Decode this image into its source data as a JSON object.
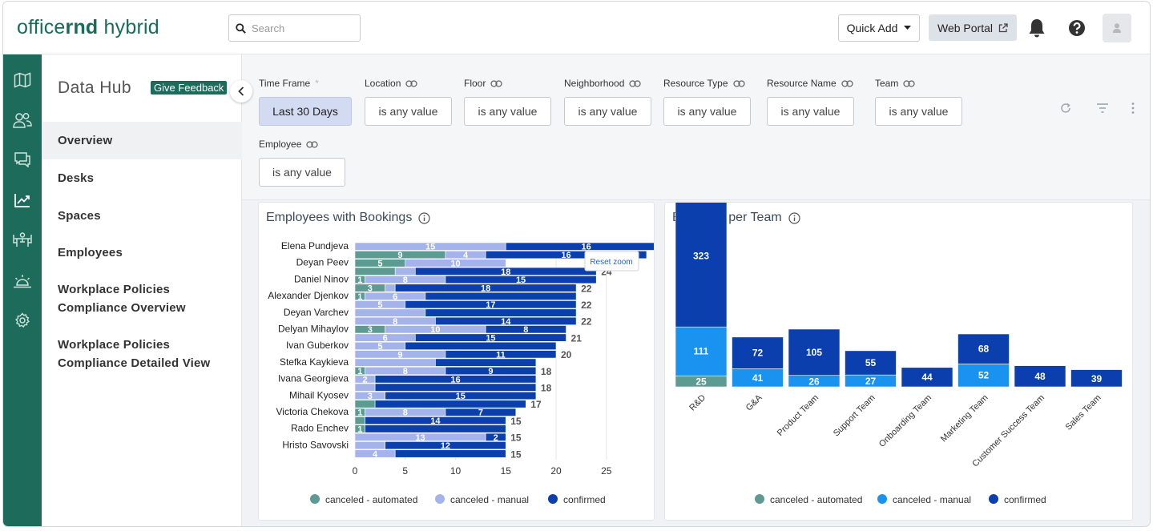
{
  "header": {
    "logo_light": "office",
    "logo_bold": "rnd",
    "logo_rest": " hybrid",
    "search_placeholder": "Search",
    "quick_add_label": "Quick Add",
    "web_portal_label": "Web Portal"
  },
  "sidebar": {
    "title": "Data Hub",
    "feedback_label": "Give Feedback",
    "items": [
      {
        "label": "Overview"
      },
      {
        "label": "Desks"
      },
      {
        "label": "Spaces"
      },
      {
        "label": "Employees"
      },
      {
        "label": "Workplace Policies Compliance Overview"
      },
      {
        "label": "Workplace Policies Compliance Detailed View"
      }
    ]
  },
  "filters": [
    {
      "label": "Time Frame",
      "required": "*",
      "value": "Last 30 Days"
    },
    {
      "label": "Location",
      "value": "is any value"
    },
    {
      "label": "Floor",
      "value": "is any value"
    },
    {
      "label": "Neighborhood",
      "value": "is any value"
    },
    {
      "label": "Resource Type",
      "value": "is any value"
    },
    {
      "label": "Resource Name",
      "value": "is any value"
    },
    {
      "label": "Team",
      "value": "is any value"
    },
    {
      "label": "Employee",
      "value": "is any value"
    }
  ],
  "colors": {
    "brand": "#1d6b5b",
    "chart1_automated": "#5c9a92",
    "chart1_manual": "#a4b4ea",
    "chart1_confirmed": "#0b3fae",
    "chart2_automated": "#5c9a92",
    "chart2_manual": "#1a92f0",
    "chart2_confirmed": "#0b3fae"
  },
  "chart_data": [
    {
      "type": "bar",
      "orientation": "horizontal",
      "stacked": true,
      "title": "Employees with Bookings",
      "reset_zoom_label": "Reset zoom",
      "categories": [
        "Elena Pundjeva",
        "Deyan Peev",
        "Daniel Ninov",
        "Alexander Djenkov",
        "Deyan Varchev",
        "Delyan Mihaylov",
        "Ivan Guberkov",
        "Stefka Kaykieva",
        "Ivana Georgieva",
        "Mihail Kyosev",
        "Victoria Chekova",
        "Rado Enchev",
        "Hristo Savovski"
      ],
      "rows": [
        {
          "automated": 0,
          "manual": 15,
          "confirmed": 16,
          "total": "",
          "lbl_auto": "",
          "lbl_manual": "15",
          "lbl_conf": "16"
        },
        {
          "automated": 9,
          "manual": 4,
          "confirmed": 16,
          "total": "",
          "lbl_auto": "9",
          "lbl_manual": "4",
          "lbl_conf": "16"
        },
        {
          "automated": 5,
          "manual": 10,
          "confirmed": 0,
          "total": "",
          "lbl_auto": "5",
          "lbl_manual": "10",
          "lbl_conf": ""
        },
        {
          "automated": 4,
          "manual": 2,
          "confirmed": 18,
          "total": "24",
          "lbl_auto": "",
          "lbl_manual": "",
          "lbl_conf": "18"
        },
        {
          "automated": 1,
          "manual": 8,
          "confirmed": 15,
          "total": "",
          "lbl_auto": "1",
          "lbl_manual": "8",
          "lbl_conf": "15"
        },
        {
          "automated": 3,
          "manual": 1,
          "confirmed": 18,
          "total": "22",
          "lbl_auto": "3",
          "lbl_manual": "",
          "lbl_conf": "18"
        },
        {
          "automated": 1,
          "manual": 6,
          "confirmed": 15,
          "total": "",
          "lbl_auto": "1",
          "lbl_manual": "6",
          "lbl_conf": ""
        },
        {
          "automated": 0,
          "manual": 5,
          "confirmed": 17,
          "total": "22",
          "lbl_auto": "",
          "lbl_manual": "5",
          "lbl_conf": "17"
        },
        {
          "automated": 0,
          "manual": 7,
          "confirmed": 15,
          "total": "",
          "lbl_auto": "",
          "lbl_manual": "",
          "lbl_conf": ""
        },
        {
          "automated": 0,
          "manual": 8,
          "confirmed": 14,
          "total": "22",
          "lbl_auto": "",
          "lbl_manual": "8",
          "lbl_conf": "14"
        },
        {
          "automated": 3,
          "manual": 10,
          "confirmed": 8,
          "total": "",
          "lbl_auto": "3",
          "lbl_manual": "10",
          "lbl_conf": "8"
        },
        {
          "automated": 0,
          "manual": 6,
          "confirmed": 15,
          "total": "21",
          "lbl_auto": "",
          "lbl_manual": "6",
          "lbl_conf": "15"
        },
        {
          "automated": 0,
          "manual": 5,
          "confirmed": 15,
          "total": "",
          "lbl_auto": "",
          "lbl_manual": "5",
          "lbl_conf": ""
        },
        {
          "automated": 0,
          "manual": 9,
          "confirmed": 11,
          "total": "20",
          "lbl_auto": "",
          "lbl_manual": "9",
          "lbl_conf": "11"
        },
        {
          "automated": 0,
          "manual": 8,
          "confirmed": 10,
          "total": "",
          "lbl_auto": "",
          "lbl_manual": "",
          "lbl_conf": ""
        },
        {
          "automated": 1,
          "manual": 8,
          "confirmed": 9,
          "total": "18",
          "lbl_auto": "1",
          "lbl_manual": "8",
          "lbl_conf": "9"
        },
        {
          "automated": 0,
          "manual": 2,
          "confirmed": 16,
          "total": "",
          "lbl_auto": "",
          "lbl_manual": "2",
          "lbl_conf": "16"
        },
        {
          "automated": 0,
          "manual": 2,
          "confirmed": 16,
          "total": "18",
          "lbl_auto": "",
          "lbl_manual": "",
          "lbl_conf": ""
        },
        {
          "automated": 0,
          "manual": 3,
          "confirmed": 15,
          "total": "",
          "lbl_auto": "",
          "lbl_manual": "3",
          "lbl_conf": "15"
        },
        {
          "automated": 2,
          "manual": 0,
          "confirmed": 15,
          "total": "17",
          "lbl_auto": "",
          "lbl_manual": "",
          "lbl_conf": ""
        },
        {
          "automated": 1,
          "manual": 8,
          "confirmed": 7,
          "total": "",
          "lbl_auto": "1",
          "lbl_manual": "8",
          "lbl_conf": "7"
        },
        {
          "automated": 1,
          "manual": 0,
          "confirmed": 14,
          "total": "15",
          "lbl_auto": "",
          "lbl_manual": "",
          "lbl_conf": "14"
        },
        {
          "automated": 1,
          "manual": 0,
          "confirmed": 14,
          "total": "",
          "lbl_auto": "1",
          "lbl_manual": "",
          "lbl_conf": ""
        },
        {
          "automated": 0,
          "manual": 13,
          "confirmed": 2,
          "total": "15",
          "lbl_auto": "",
          "lbl_manual": "13",
          "lbl_conf": "2"
        },
        {
          "automated": 0,
          "manual": 3,
          "confirmed": 12,
          "total": "",
          "lbl_auto": "",
          "lbl_manual": "",
          "lbl_conf": "12"
        },
        {
          "automated": 0,
          "manual": 4,
          "confirmed": 11,
          "total": "15",
          "lbl_auto": "",
          "lbl_manual": "4",
          "lbl_conf": ""
        }
      ],
      "x_ticks": [
        "0",
        "5",
        "10",
        "15",
        "20",
        "25"
      ],
      "xlim": [
        0,
        29
      ],
      "legend": [
        "canceled - automated",
        "canceled - manual",
        "confirmed"
      ]
    },
    {
      "type": "bar",
      "orientation": "vertical",
      "stacked": true,
      "title": "Bookings per Team",
      "categories": [
        "R&D",
        "G&A",
        "Product Team",
        "Support Team",
        "Onboarding Team",
        "Marketing Team",
        "Customer Success Team",
        "Sales Team"
      ],
      "series": [
        {
          "name": "canceled - automated",
          "values": [
            25,
            0,
            0,
            0,
            0,
            0,
            0,
            0
          ],
          "labels": [
            "25",
            "",
            "",
            "",
            "",
            "",
            "",
            ""
          ]
        },
        {
          "name": "canceled - manual",
          "values": [
            111,
            41,
            26,
            27,
            0,
            52,
            0,
            0
          ],
          "labels": [
            "111",
            "41",
            "26",
            "27",
            "",
            "52",
            "",
            ""
          ]
        },
        {
          "name": "confirmed",
          "values": [
            323,
            72,
            105,
            55,
            44,
            68,
            48,
            39
          ],
          "labels": [
            "323",
            "72",
            "105",
            "55",
            "44",
            "68",
            "48",
            "39"
          ]
        }
      ],
      "legend": [
        "canceled - automated",
        "canceled - manual",
        "confirmed"
      ]
    }
  ]
}
